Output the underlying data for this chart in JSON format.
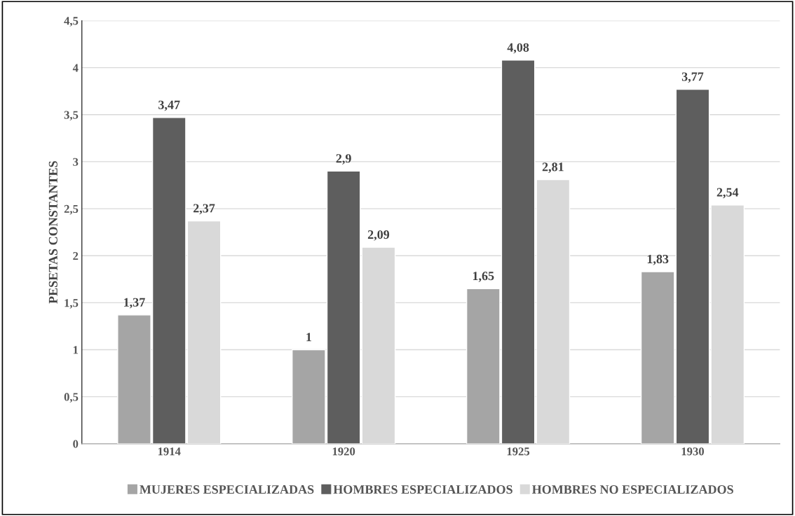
{
  "chart_data": {
    "type": "bar",
    "ylabel": "PESETAS CONSTANTES",
    "categories": [
      "1914",
      "1920",
      "1925",
      "1930"
    ],
    "series": [
      {
        "name": "MUJERES ESPECIALIZADAS",
        "color": "#a5a5a5",
        "values": [
          1.37,
          1,
          1.65,
          1.83
        ],
        "value_labels": [
          "1,37",
          "1",
          "1,65",
          "1,83"
        ]
      },
      {
        "name": "HOMBRES ESPECIALIZADOS",
        "color": "#5e5e5e",
        "values": [
          3.47,
          2.9,
          4.08,
          3.77
        ],
        "value_labels": [
          "3,47",
          "2,9",
          "4,08",
          "3,77"
        ]
      },
      {
        "name": "HOMBRES NO ESPECIALIZADOS",
        "color": "#d9d9d9",
        "values": [
          2.37,
          2.09,
          2.81,
          2.54
        ],
        "value_labels": [
          "2,37",
          "2,09",
          "2,81",
          "2,54"
        ]
      }
    ],
    "ylim": [
      0,
      4.5
    ],
    "yticks": [
      0,
      {
        "value": 0.5,
        "label": "0,5"
      },
      1,
      {
        "value": 1.5,
        "label": "1,5"
      },
      2,
      {
        "value": 2.5,
        "label": "2,5"
      },
      3,
      {
        "value": 3.5,
        "label": "3,5"
      },
      4,
      {
        "value": 4.5,
        "label": "4,5"
      }
    ],
    "grid": "y",
    "legend": "bottom"
  }
}
